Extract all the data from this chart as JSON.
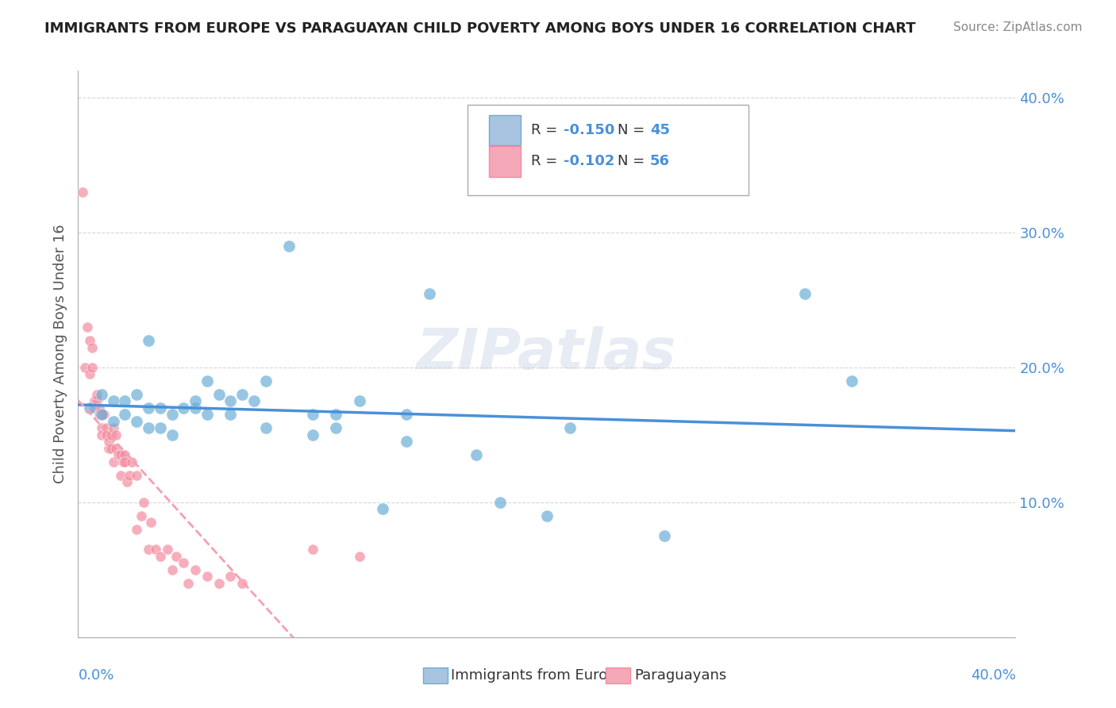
{
  "title": "IMMIGRANTS FROM EUROPE VS PARAGUAYAN CHILD POVERTY AMONG BOYS UNDER 16 CORRELATION CHART",
  "source": "Source: ZipAtlas.com",
  "ylabel": "Child Poverty Among Boys Under 16",
  "ytick_vals": [
    0.1,
    0.2,
    0.3,
    0.4
  ],
  "xlim": [
    0.0,
    0.4
  ],
  "ylim": [
    0.0,
    0.42
  ],
  "blue_color": "#6aaed6",
  "pink_color": "#f48ca0",
  "blue_line_color": "#4a90d9",
  "pink_line_color": "#f4a0b0",
  "blue_scatter_x": [
    0.005,
    0.01,
    0.01,
    0.015,
    0.015,
    0.02,
    0.02,
    0.025,
    0.025,
    0.03,
    0.03,
    0.03,
    0.035,
    0.035,
    0.04,
    0.04,
    0.045,
    0.05,
    0.05,
    0.055,
    0.055,
    0.06,
    0.065,
    0.065,
    0.07,
    0.075,
    0.08,
    0.08,
    0.09,
    0.1,
    0.1,
    0.11,
    0.11,
    0.12,
    0.13,
    0.14,
    0.14,
    0.15,
    0.17,
    0.18,
    0.2,
    0.21,
    0.25,
    0.31,
    0.33
  ],
  "blue_scatter_y": [
    0.17,
    0.18,
    0.165,
    0.175,
    0.16,
    0.175,
    0.165,
    0.18,
    0.16,
    0.22,
    0.17,
    0.155,
    0.17,
    0.155,
    0.15,
    0.165,
    0.17,
    0.17,
    0.175,
    0.19,
    0.165,
    0.18,
    0.175,
    0.165,
    0.18,
    0.175,
    0.19,
    0.155,
    0.29,
    0.15,
    0.165,
    0.155,
    0.165,
    0.175,
    0.095,
    0.165,
    0.145,
    0.255,
    0.135,
    0.1,
    0.09,
    0.155,
    0.075,
    0.255,
    0.19
  ],
  "pink_scatter_x": [
    0.002,
    0.003,
    0.004,
    0.005,
    0.005,
    0.006,
    0.006,
    0.007,
    0.007,
    0.008,
    0.008,
    0.009,
    0.009,
    0.01,
    0.01,
    0.01,
    0.011,
    0.012,
    0.012,
    0.013,
    0.013,
    0.014,
    0.014,
    0.015,
    0.015,
    0.016,
    0.016,
    0.017,
    0.018,
    0.018,
    0.019,
    0.02,
    0.02,
    0.021,
    0.022,
    0.023,
    0.025,
    0.025,
    0.027,
    0.028,
    0.03,
    0.031,
    0.033,
    0.035,
    0.038,
    0.04,
    0.042,
    0.045,
    0.047,
    0.05,
    0.055,
    0.06,
    0.065,
    0.07,
    0.1,
    0.12
  ],
  "pink_scatter_y": [
    0.33,
    0.2,
    0.23,
    0.22,
    0.195,
    0.2,
    0.215,
    0.175,
    0.17,
    0.175,
    0.18,
    0.165,
    0.17,
    0.155,
    0.165,
    0.15,
    0.165,
    0.155,
    0.15,
    0.14,
    0.145,
    0.15,
    0.14,
    0.155,
    0.13,
    0.14,
    0.15,
    0.135,
    0.12,
    0.135,
    0.13,
    0.135,
    0.13,
    0.115,
    0.12,
    0.13,
    0.08,
    0.12,
    0.09,
    0.1,
    0.065,
    0.085,
    0.065,
    0.06,
    0.065,
    0.05,
    0.06,
    0.055,
    0.04,
    0.05,
    0.045,
    0.04,
    0.045,
    0.04,
    0.065,
    0.06
  ]
}
